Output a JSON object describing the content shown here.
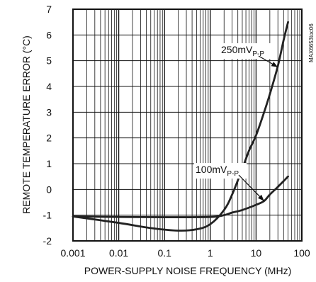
{
  "chart_data": {
    "type": "line",
    "title": "",
    "xlabel": "POWER-SUPPLY NOISE FREQUENCY (MHz)",
    "ylabel": "REMOTE TEMPERATURE ERROR (°C)",
    "xscale": "log",
    "xlim": [
      0.001,
      100
    ],
    "ylim": [
      -2,
      7
    ],
    "x_ticks": [
      0.001,
      0.01,
      0.1,
      1,
      10,
      100
    ],
    "x_tick_labels": [
      "0.001",
      "0.01",
      "0.1",
      "1",
      "10",
      "100"
    ],
    "y_ticks": [
      -2,
      -1,
      0,
      1,
      2,
      3,
      4,
      5,
      6,
      7
    ],
    "y_tick_labels": [
      "-2",
      "-1",
      "0",
      "1",
      "2",
      "3",
      "4",
      "5",
      "6",
      "7"
    ],
    "grid": true,
    "figure_code": "MAX6653toc06",
    "series": [
      {
        "name": "250mVP-P",
        "label_main": "250mV",
        "label_sub": "P-P",
        "x": [
          0.001,
          0.01,
          0.05,
          0.2,
          0.5,
          1,
          2,
          3,
          5,
          7,
          10,
          15,
          20,
          30,
          40,
          50
        ],
        "y": [
          -1.05,
          -1.3,
          -1.5,
          -1.6,
          -1.55,
          -1.35,
          -0.8,
          -0.2,
          0.8,
          1.5,
          2.1,
          3.0,
          3.7,
          4.8,
          5.8,
          6.5
        ]
      },
      {
        "name": "100mVP-P",
        "label_main": "100mV",
        "label_sub": "P-P",
        "x": [
          0.001,
          0.01,
          0.1,
          1,
          2,
          3,
          5,
          10,
          15,
          20,
          30,
          50
        ],
        "y": [
          -1.05,
          -1.07,
          -1.08,
          -1.07,
          -1.0,
          -0.9,
          -0.8,
          -0.6,
          -0.45,
          -0.2,
          0.1,
          0.5
        ]
      }
    ]
  }
}
